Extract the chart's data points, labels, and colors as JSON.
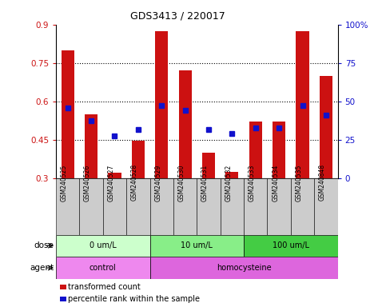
{
  "title": "GDS3413 / 220017",
  "samples": [
    "GSM240525",
    "GSM240526",
    "GSM240527",
    "GSM240528",
    "GSM240529",
    "GSM240530",
    "GSM240531",
    "GSM240532",
    "GSM240533",
    "GSM240534",
    "GSM240535",
    "GSM240848"
  ],
  "transformed_count": [
    0.8,
    0.55,
    0.32,
    0.445,
    0.875,
    0.72,
    0.4,
    0.325,
    0.52,
    0.52,
    0.875,
    0.7
  ],
  "percentile_rank": [
    0.575,
    0.525,
    0.465,
    0.49,
    0.585,
    0.565,
    0.49,
    0.475,
    0.495,
    0.495,
    0.585,
    0.545
  ],
  "bar_color": "#cc1111",
  "dot_color": "#1111cc",
  "ylim": [
    0.3,
    0.9
  ],
  "y2lim": [
    0,
    100
  ],
  "yticks": [
    0.3,
    0.45,
    0.6,
    0.75,
    0.9
  ],
  "y2ticks": [
    0,
    25,
    50,
    75,
    100
  ],
  "ytick_labels": [
    "0.3",
    "0.45",
    "0.6",
    "0.75",
    "0.9"
  ],
  "y2tick_labels": [
    "0",
    "25",
    "50",
    "75",
    "100%"
  ],
  "dose_groups": [
    {
      "label": "0 um/L",
      "start": 0,
      "end": 4,
      "color": "#ccffcc"
    },
    {
      "label": "10 um/L",
      "start": 4,
      "end": 8,
      "color": "#88ee88"
    },
    {
      "label": "100 um/L",
      "start": 8,
      "end": 12,
      "color": "#44cc44"
    }
  ],
  "agent_groups": [
    {
      "label": "control",
      "start": 0,
      "end": 4,
      "color": "#ee88ee"
    },
    {
      "label": "homocysteine",
      "start": 4,
      "end": 12,
      "color": "#dd66dd"
    }
  ],
  "dose_label": "dose",
  "agent_label": "agent",
  "legend_items": [
    {
      "color": "#cc1111",
      "label": "transformed count"
    },
    {
      "color": "#1111cc",
      "label": "percentile rank within the sample"
    }
  ],
  "tick_area_color": "#cccccc",
  "grid_lines": [
    0.45,
    0.6,
    0.75
  ]
}
